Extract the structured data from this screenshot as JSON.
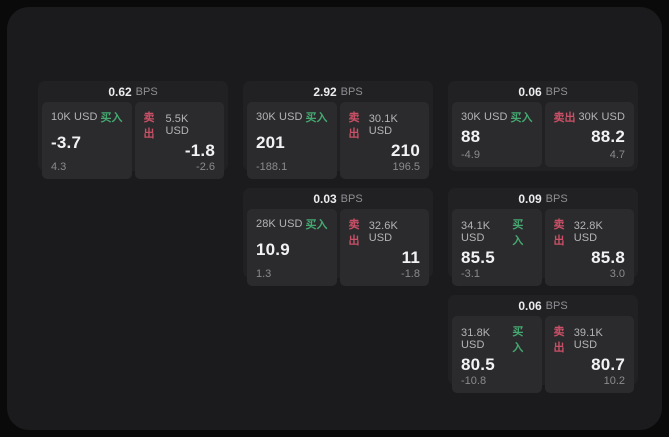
{
  "colors": {
    "background": "#0a0a0a",
    "panel": "#1b1b1d",
    "card": "#212123",
    "subpanel": "#2b2b2d",
    "buy": "#45a871",
    "sell": "#c95066"
  },
  "labels": {
    "bps": "BPS",
    "buy": "买入",
    "sell": "卖出"
  },
  "cards": [
    {
      "bps": "0.62",
      "row": 0,
      "col": 0,
      "buy": {
        "size": "10K USD",
        "value": "-3.7",
        "delta": "4.3"
      },
      "sell": {
        "size": "5.5K USD",
        "value": "-1.8",
        "delta": "-2.6"
      }
    },
    {
      "bps": "2.92",
      "row": 0,
      "col": 1,
      "buy": {
        "size": "30K USD",
        "value": "201",
        "delta": "-188.1"
      },
      "sell": {
        "size": "30.1K USD",
        "value": "210",
        "delta": "196.5"
      }
    },
    {
      "bps": "0.06",
      "row": 0,
      "col": 2,
      "buy": {
        "size": "30K USD",
        "value": "88",
        "delta": "-4.9"
      },
      "sell": {
        "size": "30K USD",
        "value": "88.2",
        "delta": "4.7"
      }
    },
    {
      "bps": "0.03",
      "row": 1,
      "col": 1,
      "buy": {
        "size": "28K USD",
        "value": "10.9",
        "delta": "1.3"
      },
      "sell": {
        "size": "32.6K USD",
        "value": "11",
        "delta": "-1.8"
      }
    },
    {
      "bps": "0.09",
      "row": 1,
      "col": 2,
      "buy": {
        "size": "34.1K USD",
        "value": "85.5",
        "delta": "-3.1"
      },
      "sell": {
        "size": "32.8K USD",
        "value": "85.8",
        "delta": "3.0"
      }
    },
    {
      "bps": "0.06",
      "row": 2,
      "col": 2,
      "buy": {
        "size": "31.8K USD",
        "value": "80.5",
        "delta": "-10.8"
      },
      "sell": {
        "size": "39.1K USD",
        "value": "80.7",
        "delta": "10.2"
      }
    }
  ]
}
